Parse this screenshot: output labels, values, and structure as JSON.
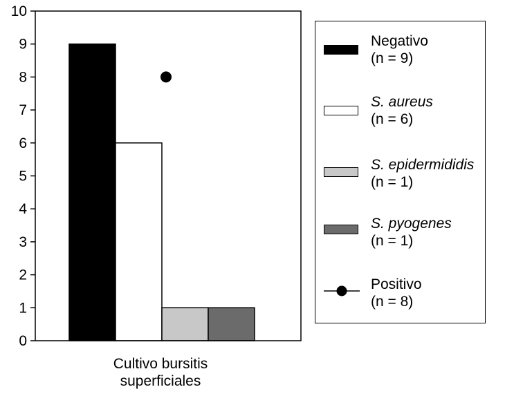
{
  "chart_data": {
    "type": "bar",
    "categories": [
      "Cultivo bursitis superficiales"
    ],
    "category_label_lines": [
      "Cultivo bursitis",
      "superficiales"
    ],
    "ylim": [
      0,
      10
    ],
    "yticks": [
      "0",
      "1",
      "2",
      "3",
      "4",
      "5",
      "6",
      "7",
      "8",
      "9",
      "10"
    ],
    "grid": false,
    "legend_position": "right",
    "series": [
      {
        "name": "Negativo",
        "count_label": "(n = 9)",
        "values": [
          9
        ],
        "color": "#000000",
        "italic": false
      },
      {
        "name": "S. aureus",
        "count_label": "(n = 6)",
        "values": [
          6
        ],
        "color": "#ffffff",
        "italic": true
      },
      {
        "name": "S. epidermididis",
        "count_label": "(n = 1)",
        "values": [
          1
        ],
        "color": "#c8c8c8",
        "italic": true
      },
      {
        "name": "S. pyogenes",
        "count_label": "(n = 1)",
        "values": [
          1
        ],
        "color": "#6b6b6b",
        "italic": true
      }
    ],
    "points": [
      {
        "name": "Positivo",
        "count_label": "(n = 8)",
        "values": [
          8
        ],
        "color": "#000000",
        "italic": false
      }
    ]
  }
}
